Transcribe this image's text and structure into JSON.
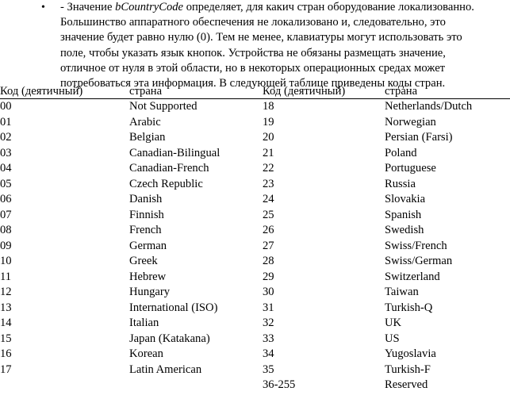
{
  "intro": {
    "bullet": "•",
    "prefix": "- Значение ",
    "field": "bCountryCode",
    "text": " определяет, для какич стран оборудование локализованно.\nБольшинство аппаратного обеспечения  не локализовано и, следовательно, это\nзначение будет равно нулю (0). Тем не менее, клавиатуры могут использовать это\nполе, чтобы указать язык кнопок. Устройства не обязаны размещать значение,\nотличное от нуля в этой области, но в некоторых операционных средах может\nпотребоваться эта информация. В следующей таблице приведены коды стран."
  },
  "table": {
    "headers": {
      "code_left": "Код (деятичный)",
      "country_left": "страна",
      "code_right": "Код (деятичный)",
      "country_right": "страна"
    },
    "rows": [
      {
        "code_left": "00",
        "country_left": "Not Supported",
        "code_right": "18",
        "country_right": "Netherlands/Dutch"
      },
      {
        "code_left": "01",
        "country_left": "Arabic",
        "code_right": "19",
        "country_right": "Norwegian"
      },
      {
        "code_left": "02",
        "country_left": "Belgian",
        "code_right": "20",
        "country_right": "Persian (Farsi)"
      },
      {
        "code_left": "03",
        "country_left": "Canadian-Bilingual",
        "code_right": "21",
        "country_right": "Poland"
      },
      {
        "code_left": "04",
        "country_left": "Canadian-French",
        "code_right": "22",
        "country_right": "Portuguese"
      },
      {
        "code_left": "05",
        "country_left": "Czech Republic",
        "code_right": "23",
        "country_right": "Russia"
      },
      {
        "code_left": "06",
        "country_left": "Danish",
        "code_right": "24",
        "country_right": "Slovakia"
      },
      {
        "code_left": "07",
        "country_left": "Finnish",
        "code_right": "25",
        "country_right": "Spanish"
      },
      {
        "code_left": "08",
        "country_left": "French",
        "code_right": "26",
        "country_right": "Swedish"
      },
      {
        "code_left": "09",
        "country_left": "German",
        "code_right": "27",
        "country_right": "Swiss/French"
      },
      {
        "code_left": "10",
        "country_left": "Greek",
        "code_right": "28",
        "country_right": "Swiss/German"
      },
      {
        "code_left": "11",
        "country_left": "Hebrew",
        "code_right": "29",
        "country_right": "Switzerland"
      },
      {
        "code_left": "12",
        "country_left": "Hungary",
        "code_right": "30",
        "country_right": "Taiwan"
      },
      {
        "code_left": "13",
        "country_left": "International (ISO)",
        "code_right": "31",
        "country_right": "Turkish-Q"
      },
      {
        "code_left": "14",
        "country_left": "Italian",
        "code_right": "32",
        "country_right": "UK"
      },
      {
        "code_left": "15",
        "country_left": "Japan (Katakana)",
        "code_right": "33",
        "country_right": "US"
      },
      {
        "code_left": "16",
        "country_left": "Korean",
        "code_right": "34",
        "country_right": "Yugoslavia"
      },
      {
        "code_left": "17",
        "country_left": "Latin American",
        "code_right": "35",
        "country_right": "Turkish-F"
      },
      {
        "code_left": "",
        "country_left": "",
        "code_right": "36-255",
        "country_right": "Reserved"
      }
    ]
  }
}
